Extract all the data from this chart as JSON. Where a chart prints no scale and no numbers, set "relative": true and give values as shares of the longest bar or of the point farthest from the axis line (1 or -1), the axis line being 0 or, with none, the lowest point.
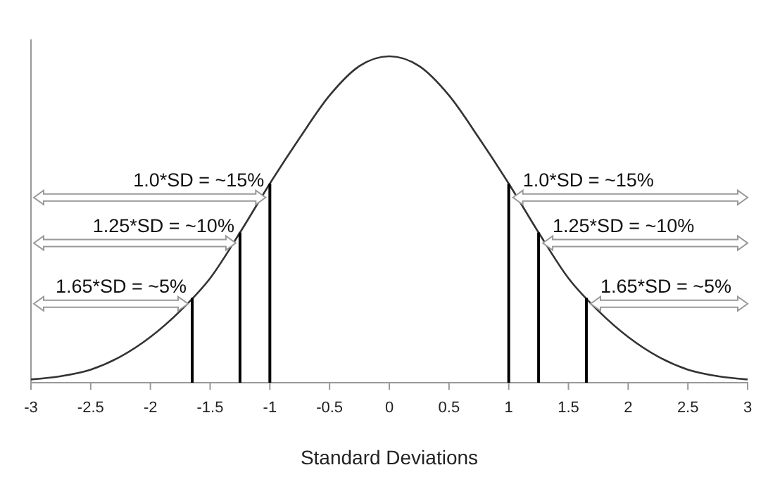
{
  "chart_data": {
    "type": "line",
    "xlabel": "Standard Deviations",
    "relative": true,
    "xlim": [
      -3,
      3
    ],
    "xticks": [
      -3,
      -2.5,
      -2,
      -1.5,
      -1,
      -0.5,
      0,
      0.5,
      1,
      1.5,
      2,
      2.5,
      3
    ],
    "x": [
      -3,
      -2.75,
      -2.5,
      -2.25,
      -2,
      -1.75,
      -1.5,
      -1.25,
      -1,
      -0.75,
      -0.5,
      -0.25,
      0,
      0.25,
      0.5,
      0.75,
      1,
      1.25,
      1.5,
      1.75,
      2,
      2.25,
      2.5,
      2.75,
      3
    ],
    "series": [
      {
        "color": "#333333",
        "values": [
          0.01,
          0.02,
          0.04,
          0.08,
          0.14,
          0.22,
          0.32,
          0.46,
          0.61,
          0.75,
          0.88,
          0.97,
          1,
          0.97,
          0.88,
          0.75,
          0.61,
          0.46,
          0.32,
          0.22,
          0.14,
          0.08,
          0.04,
          0.02,
          0.01
        ]
      }
    ],
    "ref_lines": [
      {
        "axis": "x",
        "value": -1,
        "label": "1.0*SD = ~15%",
        "color": "#000000"
      },
      {
        "axis": "x",
        "value": -1.25,
        "label": "1.25*SD = ~10%",
        "color": "#000000"
      },
      {
        "axis": "x",
        "value": -1.65,
        "label": "1.65*SD = ~5%",
        "color": "#000000"
      },
      {
        "axis": "x",
        "value": 1,
        "label": "1.0*SD = ~15%",
        "color": "#000000"
      },
      {
        "axis": "x",
        "value": 1.25,
        "label": "1.25*SD = ~10%",
        "color": "#000000"
      },
      {
        "axis": "x",
        "value": 1.65,
        "label": "1.65*SD = ~5%",
        "color": "#000000"
      }
    ]
  }
}
